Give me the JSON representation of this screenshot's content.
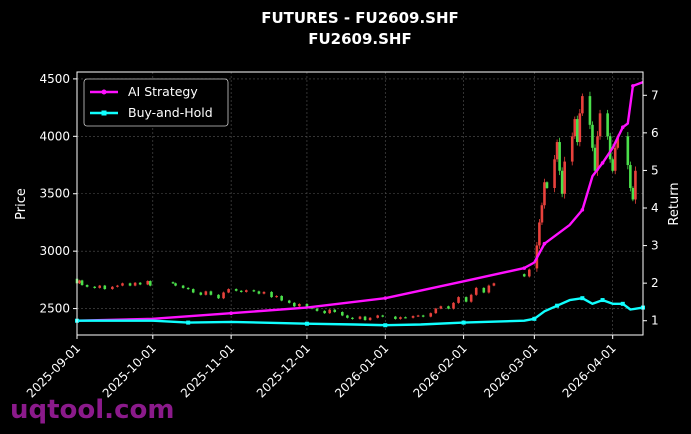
{
  "chart_data": {
    "type": "line",
    "title": "FUTURES - FU2609.SHF",
    "subtitle": "FU2609.SHF",
    "ylabel": "Price",
    "y2label": "Return",
    "ylim": [
      2270,
      4560
    ],
    "y2lim": [
      0.62,
      7.62
    ],
    "xlim": [
      "2025-09-01",
      "2026-04-13"
    ],
    "x_ticks": [
      "2025-09-01",
      "2025-10-01",
      "2025-11-01",
      "2025-12-01",
      "2026-01-01",
      "2026-02-01",
      "2026-03-01",
      "2026-04-01"
    ],
    "y_ticks": [
      2500,
      3000,
      3500,
      4000,
      4500
    ],
    "y2_ticks": [
      1,
      2,
      3,
      4,
      5,
      6,
      7
    ],
    "grid": true,
    "legend": "top-left",
    "candles": [
      [
        "2025-09-01",
        2760,
        2720
      ],
      [
        "2025-09-02",
        2720,
        2745
      ],
      [
        "2025-09-03",
        2745,
        2705
      ],
      [
        "2025-09-05",
        2705,
        2690
      ],
      [
        "2025-09-08",
        2690,
        2680
      ],
      [
        "2025-09-10",
        2680,
        2700
      ],
      [
        "2025-09-12",
        2700,
        2670
      ],
      [
        "2025-09-15",
        2670,
        2690
      ],
      [
        "2025-09-17",
        2690,
        2700
      ],
      [
        "2025-09-19",
        2700,
        2720
      ],
      [
        "2025-09-22",
        2720,
        2700
      ],
      [
        "2025-09-24",
        2700,
        2725
      ],
      [
        "2025-09-26",
        2725,
        2710
      ],
      [
        "2025-09-29",
        2710,
        2740
      ],
      [
        "2025-09-30",
        2740,
        2700
      ],
      [
        "2025-10-09",
        2730,
        2720
      ],
      [
        "2025-10-10",
        2720,
        2700
      ],
      [
        "2025-10-13",
        2700,
        2680
      ],
      [
        "2025-10-15",
        2680,
        2670
      ],
      [
        "2025-10-17",
        2670,
        2640
      ],
      [
        "2025-10-20",
        2640,
        2620
      ],
      [
        "2025-10-22",
        2620,
        2650
      ],
      [
        "2025-10-24",
        2650,
        2620
      ],
      [
        "2025-10-27",
        2620,
        2590
      ],
      [
        "2025-10-29",
        2590,
        2640
      ],
      [
        "2025-10-31",
        2640,
        2670
      ],
      [
        "2025-11-03",
        2670,
        2655
      ],
      [
        "2025-11-05",
        2655,
        2645
      ],
      [
        "2025-11-07",
        2645,
        2660
      ],
      [
        "2025-11-10",
        2660,
        2650
      ],
      [
        "2025-11-12",
        2650,
        2630
      ],
      [
        "2025-11-14",
        2630,
        2645
      ],
      [
        "2025-11-17",
        2645,
        2600
      ],
      [
        "2025-11-19",
        2600,
        2610
      ],
      [
        "2025-11-21",
        2610,
        2570
      ],
      [
        "2025-11-24",
        2570,
        2550
      ],
      [
        "2025-11-26",
        2550,
        2520
      ],
      [
        "2025-11-28",
        2520,
        2540
      ],
      [
        "2025-12-01",
        2540,
        2510
      ],
      [
        "2025-12-03",
        2510,
        2500
      ],
      [
        "2025-12-05",
        2500,
        2480
      ],
      [
        "2025-12-08",
        2480,
        2460
      ],
      [
        "2025-12-10",
        2460,
        2490
      ],
      [
        "2025-12-12",
        2490,
        2470
      ],
      [
        "2025-12-15",
        2470,
        2440
      ],
      [
        "2025-12-17",
        2440,
        2420
      ],
      [
        "2025-12-19",
        2420,
        2410
      ],
      [
        "2025-12-22",
        2410,
        2430
      ],
      [
        "2025-12-24",
        2430,
        2400
      ],
      [
        "2025-12-26",
        2400,
        2420
      ],
      [
        "2025-12-29",
        2420,
        2440
      ],
      [
        "2025-12-31",
        2440,
        2430
      ],
      [
        "2026-01-05",
        2430,
        2410
      ],
      [
        "2026-01-07",
        2410,
        2425
      ],
      [
        "2026-01-09",
        2425,
        2420
      ],
      [
        "2026-01-12",
        2420,
        2435
      ],
      [
        "2026-01-14",
        2435,
        2440
      ],
      [
        "2026-01-16",
        2440,
        2430
      ],
      [
        "2026-01-19",
        2430,
        2460
      ],
      [
        "2026-01-21",
        2460,
        2500
      ],
      [
        "2026-01-23",
        2500,
        2520
      ],
      [
        "2026-01-26",
        2520,
        2500
      ],
      [
        "2026-01-28",
        2500,
        2550
      ],
      [
        "2026-01-30",
        2550,
        2600
      ],
      [
        "2026-02-02",
        2600,
        2560
      ],
      [
        "2026-02-04",
        2560,
        2620
      ],
      [
        "2026-02-06",
        2620,
        2680
      ],
      [
        "2026-02-09",
        2680,
        2640
      ],
      [
        "2026-02-11",
        2640,
        2700
      ],
      [
        "2026-02-13",
        2700,
        2720
      ],
      [
        "2026-02-25",
        2800,
        2780
      ],
      [
        "2026-02-27",
        2780,
        2840
      ],
      [
        "2026-03-02",
        2850,
        3050
      ],
      [
        "2026-03-03",
        3050,
        3250
      ],
      [
        "2026-03-04",
        3250,
        3400
      ],
      [
        "2026-03-05",
        3400,
        3600
      ],
      [
        "2026-03-06",
        3600,
        3550
      ],
      [
        "2026-03-09",
        3550,
        3800
      ],
      [
        "2026-03-10",
        3800,
        3950
      ],
      [
        "2026-03-11",
        3950,
        3700
      ],
      [
        "2026-03-12",
        3700,
        3500
      ],
      [
        "2026-03-13",
        3500,
        3780
      ],
      [
        "2026-03-16",
        3780,
        4000
      ],
      [
        "2026-03-17",
        4000,
        4150
      ],
      [
        "2026-03-18",
        4150,
        3950
      ],
      [
        "2026-03-19",
        3950,
        4200
      ],
      [
        "2026-03-20",
        4200,
        4350
      ],
      [
        "2026-03-23",
        4350,
        4100
      ],
      [
        "2026-03-24",
        4100,
        3900
      ],
      [
        "2026-03-25",
        3900,
        3700
      ],
      [
        "2026-03-26",
        3700,
        4000
      ],
      [
        "2026-03-27",
        4000,
        4200
      ],
      [
        "2026-03-30",
        4200,
        4000
      ],
      [
        "2026-03-31",
        4000,
        3800
      ],
      [
        "2026-04-01",
        3800,
        3700
      ],
      [
        "2026-04-02",
        3700,
        3900
      ],
      [
        "2026-04-03",
        3900,
        4000
      ],
      [
        "2026-04-07",
        4000,
        3750
      ],
      [
        "2026-04-08",
        3750,
        3550
      ],
      [
        "2026-04-09",
        3550,
        3450
      ],
      [
        "2026-04-10",
        3450,
        3700
      ]
    ],
    "series": [
      {
        "name": "AI Strategy",
        "color": "#ff10ff",
        "points": [
          [
            "2025-09-01",
            1.0
          ],
          [
            "2025-10-01",
            1.05
          ],
          [
            "2025-11-01",
            1.2
          ],
          [
            "2025-12-01",
            1.35
          ],
          [
            "2026-01-01",
            1.6
          ],
          [
            "2026-02-01",
            2.05
          ],
          [
            "2026-02-25",
            2.4
          ],
          [
            "2026-03-01",
            2.55
          ],
          [
            "2026-03-05",
            3.05
          ],
          [
            "2026-03-15",
            3.55
          ],
          [
            "2026-03-20",
            3.95
          ],
          [
            "2026-03-24",
            4.85
          ],
          [
            "2026-03-28",
            5.2
          ],
          [
            "2026-04-01",
            5.6
          ],
          [
            "2026-04-05",
            6.15
          ],
          [
            "2026-04-07",
            6.25
          ],
          [
            "2026-04-09",
            7.25
          ],
          [
            "2026-04-13",
            7.35
          ]
        ]
      },
      {
        "name": "Buy-and-Hold",
        "color": "#10ffff",
        "points": [
          [
            "2025-09-01",
            1.0
          ],
          [
            "2025-10-01",
            1.0
          ],
          [
            "2025-10-15",
            0.95
          ],
          [
            "2025-11-01",
            0.97
          ],
          [
            "2025-12-01",
            0.92
          ],
          [
            "2025-12-20",
            0.9
          ],
          [
            "2026-01-01",
            0.88
          ],
          [
            "2026-01-15",
            0.9
          ],
          [
            "2026-02-01",
            0.95
          ],
          [
            "2026-02-25",
            1.0
          ],
          [
            "2026-03-01",
            1.05
          ],
          [
            "2026-03-05",
            1.25
          ],
          [
            "2026-03-10",
            1.4
          ],
          [
            "2026-03-15",
            1.55
          ],
          [
            "2026-03-20",
            1.6
          ],
          [
            "2026-03-24",
            1.45
          ],
          [
            "2026-03-28",
            1.55
          ],
          [
            "2026-04-01",
            1.45
          ],
          [
            "2026-04-05",
            1.45
          ],
          [
            "2026-04-08",
            1.3
          ],
          [
            "2026-04-13",
            1.35
          ]
        ]
      }
    ],
    "colors": {
      "up": "#e8413c",
      "down": "#4be04b",
      "background": "#000000",
      "grid": "#555555"
    }
  },
  "watermark": "uqtool.com"
}
